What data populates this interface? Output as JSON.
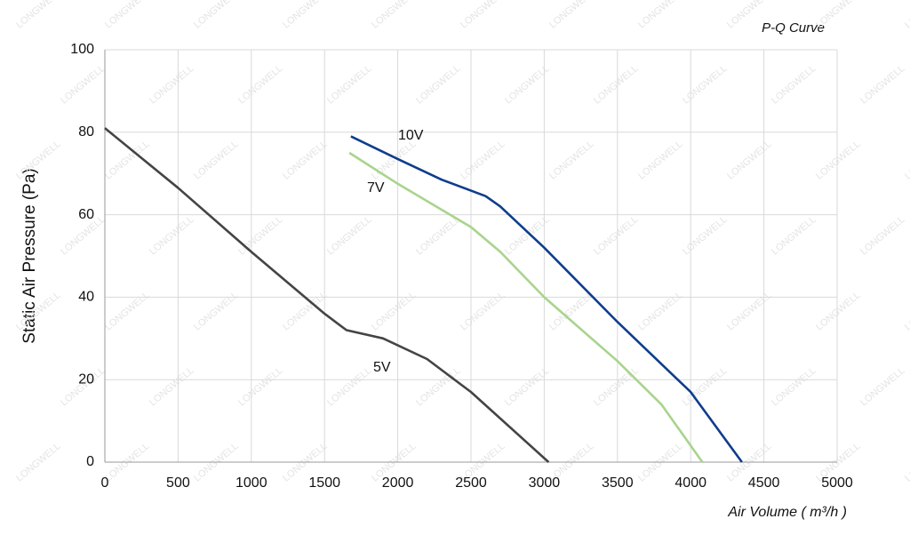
{
  "chart_data": {
    "type": "line",
    "title": "P-Q Curve",
    "x_label": "Air Volume ( m³/h )",
    "y_label": "Static Air Pressure  (Pa)",
    "watermark": "LONGWELL",
    "xlim": [
      0,
      5000
    ],
    "xticks": [
      0,
      500,
      1000,
      1500,
      2000,
      2500,
      3000,
      3500,
      4000,
      4500,
      5000
    ],
    "ylim": [
      0,
      100
    ],
    "yticks": [
      0,
      20,
      40,
      60,
      80,
      100
    ],
    "grid": true,
    "series": [
      {
        "name": "10V",
        "color": "#0e3d8c",
        "x": [
          1680,
          2000,
          2300,
          2600,
          2700,
          3000,
          3500,
          4000,
          4350
        ],
        "values": [
          79,
          73.5,
          68.5,
          64.5,
          62,
          52,
          34,
          17,
          0
        ]
      },
      {
        "name": "7V",
        "color": "#a8d48c",
        "x": [
          1670,
          2000,
          2500,
          2700,
          3000,
          3500,
          3800,
          4080
        ],
        "values": [
          75,
          67.5,
          57,
          51,
          40,
          24.5,
          14,
          0
        ]
      },
      {
        "name": "5V",
        "color": "#444444",
        "x": [
          0,
          500,
          1000,
          1500,
          1650,
          1900,
          2200,
          2500,
          3030
        ],
        "values": [
          81,
          66.5,
          51,
          36,
          32,
          30,
          25,
          17,
          0
        ]
      }
    ]
  }
}
